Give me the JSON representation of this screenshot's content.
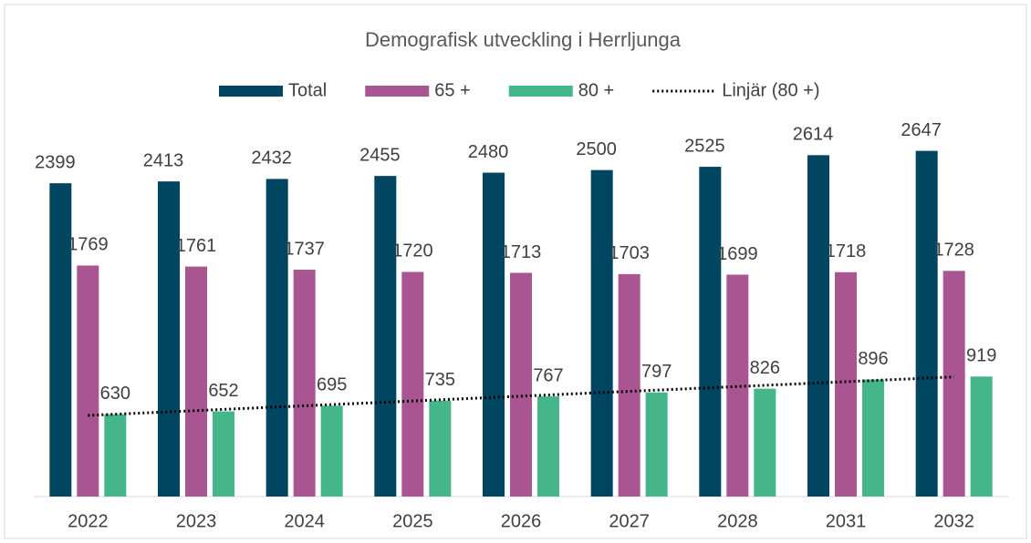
{
  "chart_data": {
    "type": "bar",
    "title": "Demografisk utveckling i Herrljunga",
    "categories": [
      "2022",
      "2023",
      "2024",
      "2025",
      "2026",
      "2027",
      "2028",
      "2031",
      "2032"
    ],
    "series": [
      {
        "name": "Total",
        "color": "#004660",
        "values": [
          2399,
          2413,
          2432,
          2455,
          2480,
          2500,
          2525,
          2614,
          2647
        ]
      },
      {
        "name": "65 +",
        "color": "#a85592",
        "values": [
          1769,
          1761,
          1737,
          1720,
          1713,
          1703,
          1699,
          1718,
          1728
        ]
      },
      {
        "name": "80 +",
        "color": "#45b58a",
        "values": [
          630,
          652,
          695,
          735,
          767,
          797,
          826,
          896,
          919
        ]
      }
    ],
    "trendline": {
      "name": "Linjär (80 +)",
      "series": 2,
      "color": "#000000"
    },
    "ylim": [
      0,
      3000
    ],
    "legend": "top"
  }
}
